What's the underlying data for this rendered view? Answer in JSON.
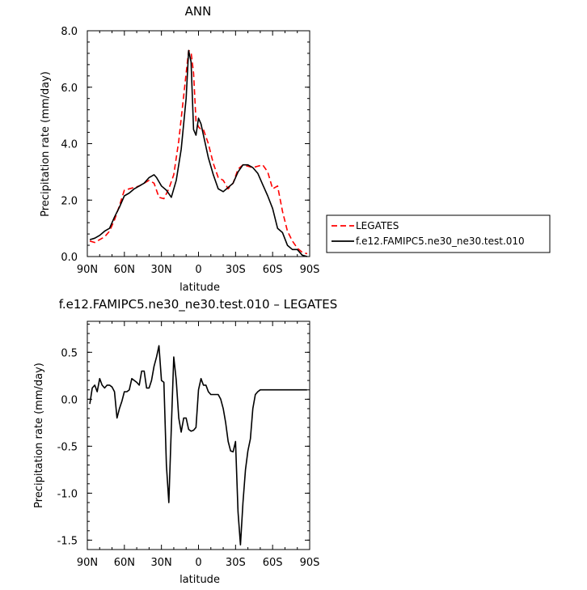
{
  "chart_data": [
    {
      "type": "line",
      "title": "ANN",
      "xlabel": "latitude",
      "ylabel": "Precipitation rate (mm/day)",
      "xlim": [
        90,
        -90
      ],
      "ylim": [
        0.0,
        8.0
      ],
      "xticks": [
        90,
        60,
        30,
        0,
        -30,
        -60,
        -90
      ],
      "xtick_labels": [
        "90N",
        "60N",
        "30N",
        "0",
        "30S",
        "60S",
        "90S"
      ],
      "yticks": [
        0.0,
        2.0,
        4.0,
        6.0,
        8.0
      ],
      "ytick_labels": [
        "0.0",
        "2.0",
        "4.0",
        "6.0",
        "8.0"
      ],
      "legend": "right",
      "series": [
        {
          "name": "LEGATES",
          "color": "#ff0000",
          "dash": true,
          "x": [
            88,
            84,
            80,
            76,
            72,
            68,
            64,
            60,
            56,
            52,
            48,
            44,
            40,
            36,
            32,
            28,
            24,
            20,
            16,
            12,
            8,
            6,
            4,
            2,
            0,
            -2,
            -4,
            -8,
            -12,
            -16,
            -20,
            -24,
            -28,
            -32,
            -36,
            -40,
            -44,
            -48,
            -52,
            -56,
            -60,
            -64,
            -68,
            -72,
            -76,
            -80,
            -84,
            -88
          ],
          "y": [
            0.55,
            0.5,
            0.6,
            0.7,
            0.9,
            1.3,
            1.8,
            2.35,
            2.4,
            2.45,
            2.5,
            2.6,
            2.7,
            2.6,
            2.1,
            2.05,
            2.4,
            2.9,
            4.1,
            5.7,
            7.3,
            7.25,
            6.5,
            4.8,
            4.6,
            4.5,
            4.5,
            4.0,
            3.3,
            2.8,
            2.7,
            2.4,
            2.6,
            3.1,
            3.25,
            3.2,
            3.15,
            3.2,
            3.25,
            3.0,
            2.4,
            2.5,
            1.6,
            0.9,
            0.55,
            0.3,
            0.15,
            0.1
          ]
        },
        {
          "name": "f.e12.FAMIPC5.ne30_ne30.test.010",
          "color": "#000000",
          "dash": false,
          "x": [
            88,
            84,
            80,
            76,
            72,
            68,
            64,
            60,
            56,
            52,
            48,
            44,
            40,
            36,
            34,
            30,
            26,
            22,
            18,
            14,
            10,
            8,
            6,
            4,
            2,
            0,
            -2,
            -4,
            -8,
            -12,
            -16,
            -20,
            -24,
            -28,
            -32,
            -36,
            -40,
            -44,
            -48,
            -52,
            -56,
            -60,
            -64,
            -68,
            -72,
            -76,
            -80,
            -84,
            -88
          ],
          "y": [
            0.6,
            0.65,
            0.75,
            0.9,
            1.0,
            1.4,
            1.75,
            2.15,
            2.25,
            2.4,
            2.5,
            2.6,
            2.8,
            2.9,
            2.8,
            2.5,
            2.35,
            2.1,
            2.7,
            3.8,
            5.6,
            7.3,
            6.9,
            4.5,
            4.3,
            4.9,
            4.7,
            4.3,
            3.5,
            2.9,
            2.4,
            2.3,
            2.45,
            2.6,
            3.0,
            3.25,
            3.25,
            3.15,
            2.95,
            2.55,
            2.15,
            1.7,
            1.0,
            0.85,
            0.4,
            0.25,
            0.25,
            0.05,
            0.0
          ]
        }
      ]
    },
    {
      "type": "line",
      "title": "f.e12.FAMIPC5.ne30_ne30.test.010 – LEGATES",
      "xlabel": "latitude",
      "ylabel": "Precipitation rate (mm/day)",
      "xlim": [
        90,
        -90
      ],
      "ylim": [
        -1.6,
        0.83
      ],
      "xticks": [
        90,
        60,
        30,
        0,
        -30,
        -60,
        -90
      ],
      "xtick_labels": [
        "90N",
        "60N",
        "30N",
        "0",
        "30S",
        "60S",
        "90S"
      ],
      "yticks": [
        0.5,
        0.0,
        -0.5,
        -1.0,
        -1.5
      ],
      "ytick_labels": [
        "0.5",
        "0.0",
        "-0.5",
        "-1.0",
        "-1.5"
      ],
      "series": [
        {
          "color": "#000000",
          "dash": false,
          "x": [
            88,
            86,
            84,
            82,
            80,
            78,
            76,
            74,
            72,
            70,
            68,
            66,
            64,
            62,
            60,
            58,
            56,
            54,
            52,
            50,
            48,
            46,
            44,
            42,
            40,
            38,
            36,
            34,
            32,
            30,
            28,
            26,
            24,
            22,
            20,
            18,
            16,
            14,
            12,
            10,
            8,
            6,
            4,
            2,
            0,
            -2,
            -4,
            -6,
            -8,
            -10,
            -12,
            -14,
            -16,
            -18,
            -20,
            -22,
            -24,
            -26,
            -28,
            -30,
            -32,
            -34,
            -36,
            -38,
            -40,
            -42,
            -44,
            -46,
            -48,
            -50,
            -52,
            -54,
            -56,
            -58,
            -60,
            -62,
            -64,
            -66,
            -68,
            -70,
            -72,
            -74,
            -76,
            -78,
            -80,
            -82,
            -84,
            -86,
            -88
          ],
          "y": [
            -0.05,
            0.12,
            0.15,
            0.08,
            0.22,
            0.15,
            0.12,
            0.15,
            0.15,
            0.13,
            0.08,
            -0.2,
            -0.1,
            -0.02,
            0.08,
            0.08,
            0.1,
            0.22,
            0.2,
            0.18,
            0.15,
            0.3,
            0.3,
            0.12,
            0.12,
            0.2,
            0.35,
            0.45,
            0.57,
            0.2,
            0.18,
            -0.7,
            -1.1,
            -0.3,
            0.45,
            0.2,
            -0.2,
            -0.35,
            -0.2,
            -0.2,
            -0.32,
            -0.34,
            -0.33,
            -0.3,
            0.1,
            0.22,
            0.15,
            0.15,
            0.08,
            0.05,
            0.05,
            0.05,
            0.05,
            0.0,
            -0.1,
            -0.25,
            -0.45,
            -0.55,
            -0.56,
            -0.45,
            -1.2,
            -1.55,
            -1.1,
            -0.75,
            -0.55,
            -0.42,
            -0.1,
            0.05,
            0.08,
            0.1,
            0.1,
            0.1,
            0.1,
            0.1,
            0.1,
            0.1,
            0.1,
            0.1,
            0.1,
            0.1,
            0.1,
            0.1,
            0.1,
            0.1,
            0.1,
            0.1,
            0.1,
            0.1,
            0.1
          ]
        }
      ]
    }
  ]
}
